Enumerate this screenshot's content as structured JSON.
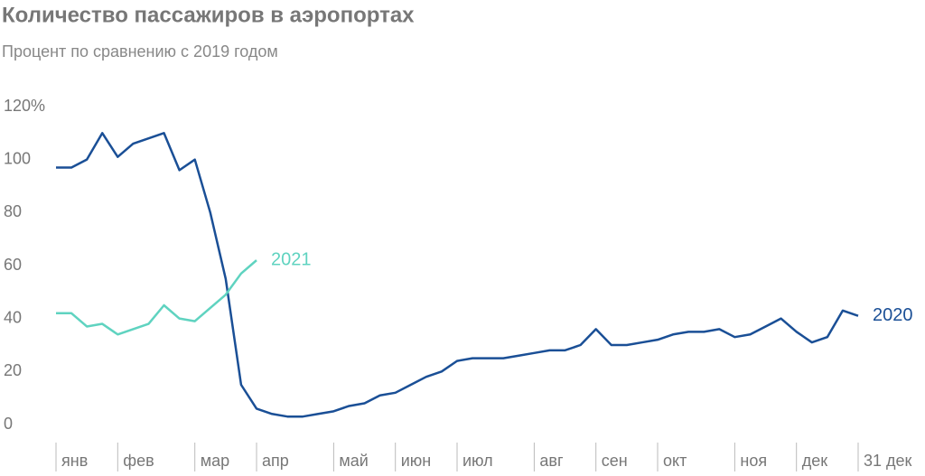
{
  "chart_data": {
    "type": "line",
    "title": "Количество пассажиров в аэропортах",
    "subtitle": "Процент по сравнению с 2019 годом",
    "categories": [
      "янв",
      null,
      null,
      null,
      "фев",
      null,
      null,
      null,
      null,
      "мар",
      null,
      null,
      null,
      "апр",
      null,
      null,
      null,
      null,
      "май",
      null,
      null,
      null,
      "июн",
      null,
      null,
      null,
      "июл",
      null,
      null,
      null,
      null,
      "авг",
      null,
      null,
      null,
      "сен",
      null,
      null,
      null,
      "окт",
      null,
      null,
      null,
      null,
      "ноя",
      null,
      null,
      null,
      "дек",
      null,
      null,
      null,
      "31 дек"
    ],
    "series": [
      {
        "name": "2020",
        "color": "#1a4f96",
        "values": [
          97,
          97,
          100,
          110,
          101,
          106,
          108,
          110,
          96,
          100,
          80,
          55,
          15,
          6,
          4,
          3,
          3,
          4,
          5,
          7,
          8,
          11,
          12,
          15,
          18,
          20,
          24,
          25,
          25,
          25,
          26,
          27,
          28,
          28,
          30,
          36,
          30,
          30,
          31,
          32,
          34,
          35,
          35,
          36,
          33,
          34,
          37,
          40,
          35,
          31,
          33,
          43,
          41
        ]
      },
      {
        "name": "2021",
        "color": "#5fd3c0",
        "values": [
          42,
          42,
          37,
          38,
          34,
          36,
          38,
          45,
          40,
          39,
          44,
          49,
          57,
          62,
          null,
          null,
          null,
          null,
          null,
          null,
          null,
          null,
          null,
          null,
          null,
          null,
          null,
          null,
          null,
          null,
          null,
          null,
          null,
          null,
          null,
          null,
          null,
          null,
          null,
          null,
          null,
          null,
          null,
          null,
          null,
          null,
          null,
          null,
          null,
          null,
          null,
          null,
          null
        ]
      }
    ],
    "ylim": [
      0,
      120
    ],
    "yticks": [
      0,
      20,
      40,
      60,
      80,
      100,
      {
        "value": 120,
        "label": "120%"
      }
    ]
  }
}
